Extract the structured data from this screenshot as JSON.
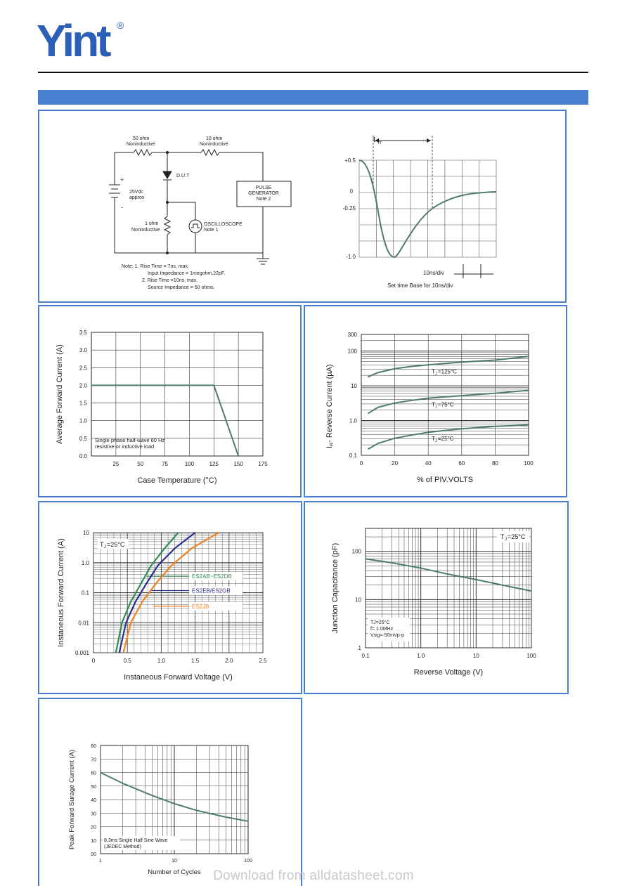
{
  "header": {
    "logo_text": "Yint",
    "registered_mark": "®",
    "brand_color": "#2b5fb8",
    "band_color": "#4a7fd0"
  },
  "trr_panel": {
    "circuit": {
      "r1_label": "50 ohm",
      "r1_sub": "Noninductive",
      "r2_label": "10 ohm",
      "r2_sub": "Noninductive",
      "dut_label": "D.U.T",
      "battery_label": "25Vdc",
      "battery_sub": "approx",
      "plus": "+",
      "minus": "-",
      "pulse_gen_1": "PULSE",
      "pulse_gen_2": "GENERATOR",
      "pulse_gen_3": "Note 2",
      "r3_label": "1 ohm",
      "r3_sub": "Noninductive",
      "scope_label": "OSCILLOSCOPE",
      "scope_sub": "Note 1",
      "note_1": "Note:  1. Rise Time = 7ns, max.",
      "note_2": "Input Impedance = 1megohm,22pF.",
      "note_3": "2. Rise Time =10ns, max.",
      "note_4": "Source Impedance = 50 ohms."
    },
    "waveform": {
      "trr_label": "t",
      "trr_sub": "rr",
      "y_labels": [
        "+0.5",
        "0",
        "-0.25",
        "-1.0"
      ],
      "div_label": "10ns/div",
      "base_label": "Set time Base for 10ns/div"
    }
  },
  "chart_data": [
    {
      "type": "line",
      "id": "derating",
      "xlabel": "Case Temperature (°C)",
      "ylabel": "Average Forward Current  (A)",
      "xlim": [
        0,
        175
      ],
      "ylim": [
        0,
        3.5
      ],
      "x_ticks": [
        "25",
        "50",
        "75",
        "100",
        "125",
        "150",
        "175"
      ],
      "y_ticks": [
        "0.0",
        "0.5",
        "1.0",
        "1.5",
        "2.0",
        "2.5",
        "3.0",
        "3.5"
      ],
      "annotation_1": "Single phase half-wave 60 Hz",
      "annotation_2": "resistive or inductive load",
      "series": [
        {
          "x": [
            0,
            125,
            150
          ],
          "y": [
            2.0,
            2.0,
            0.0
          ]
        }
      ],
      "grid": true
    },
    {
      "type": "line",
      "id": "reverse",
      "xlabel": "% of PIV.VOLTS",
      "ylabel": "IR- Reverse Current (µA)",
      "ylabel_main": "I",
      "ylabel_sub": "R",
      "ylabel_rest": "- Reverse Current (µA)",
      "yscale": "log",
      "xlim": [
        0,
        100
      ],
      "ylim": [
        0.1,
        300
      ],
      "x_ticks": [
        "0",
        "20",
        "40",
        "60",
        "80",
        "100"
      ],
      "y_ticks": [
        "0.1",
        "1.0",
        "10",
        "100",
        "300"
      ],
      "series": [
        {
          "name": "T   =125°C",
          "label_main": "T",
          "label_sub": "J",
          "label_rest": "=125°C",
          "x": [
            4,
            10,
            20,
            30,
            40,
            60,
            80,
            100
          ],
          "y": [
            18,
            24,
            31,
            36,
            40,
            48,
            55,
            70
          ]
        },
        {
          "name": "T   =75°C",
          "label_main": "T",
          "label_sub": "J",
          "label_rest": "=75°C",
          "x": [
            4,
            10,
            20,
            30,
            40,
            60,
            80,
            100
          ],
          "y": [
            1.6,
            2.4,
            3.2,
            3.8,
            4.4,
            5.2,
            6.1,
            7.4
          ]
        },
        {
          "name": "T   =25°C",
          "label_main": "T",
          "label_sub": "J",
          "label_rest": "=25°C",
          "x": [
            4,
            10,
            20,
            30,
            40,
            60,
            80,
            100
          ],
          "y": [
            0.15,
            0.22,
            0.31,
            0.38,
            0.46,
            0.58,
            0.68,
            0.75
          ]
        }
      ],
      "grid": true
    },
    {
      "type": "line",
      "id": "forward",
      "xlabel": "Instaneous Forward Voltage (V)",
      "ylabel": "Instaneous Forward Current (A)",
      "yscale": "log",
      "xlim": [
        0,
        2.5
      ],
      "ylim": [
        0.001,
        10
      ],
      "x_ticks": [
        "0",
        "0.5",
        "1.0",
        "1.5",
        "2.0",
        "2.5"
      ],
      "y_ticks": [
        "0.001",
        "0.01",
        "0.1",
        "1.0",
        "10"
      ],
      "tj_main": "T",
      "tj_sub": "J",
      "tj_rest": "=25°C",
      "series": [
        {
          "name": "ES2AB~ES2DB",
          "color": "#2e8b57",
          "x": [
            0.33,
            0.42,
            0.55,
            0.7,
            0.85,
            1.05,
            1.25
          ],
          "y": [
            0.001,
            0.01,
            0.05,
            0.2,
            0.8,
            3.0,
            10
          ]
        },
        {
          "name": "ES2EB/ES2GB",
          "color": "#2b2f8f",
          "x": [
            0.38,
            0.48,
            0.62,
            0.78,
            0.95,
            1.2,
            1.5
          ],
          "y": [
            0.001,
            0.01,
            0.05,
            0.2,
            0.8,
            3.0,
            10
          ]
        },
        {
          "name": "ES2JB",
          "color": "#f08020",
          "x": [
            0.44,
            0.55,
            0.72,
            0.92,
            1.15,
            1.45,
            1.85
          ],
          "y": [
            0.001,
            0.01,
            0.05,
            0.2,
            0.8,
            3.0,
            10
          ]
        }
      ],
      "grid": true
    },
    {
      "type": "line",
      "id": "capacitance",
      "xlabel": "Reverse  Voltage (V)",
      "ylabel": "Junction Capacitance (pF)",
      "xscale": "log",
      "yscale": "log",
      "xlim": [
        0.1,
        100
      ],
      "ylim": [
        1,
        300
      ],
      "x_ticks": [
        "0.1",
        "1.0",
        "10",
        "100"
      ],
      "y_ticks": [
        "1",
        "10",
        "100"
      ],
      "legend_main": "T",
      "legend_sub": "J",
      "legend_rest": "=25°C",
      "notes": [
        "TJ=25°C",
        "f= 1.0MHz",
        "Vsig= 50mVp-p"
      ],
      "series": [
        {
          "x": [
            0.1,
            0.3,
            1,
            3,
            10,
            30,
            100
          ],
          "y": [
            70,
            58,
            45,
            34,
            26,
            20,
            15
          ]
        }
      ],
      "grid": true
    },
    {
      "type": "line",
      "id": "surge",
      "xlabel": "Number of Cycles",
      "ylabel": "Peak Forward Surage Current (A)",
      "xscale": "log",
      "xlim": [
        1,
        100
      ],
      "ylim": [
        0,
        80
      ],
      "x_ticks": [
        "1",
        "10",
        "100"
      ],
      "y_ticks": [
        "00",
        "10",
        "20",
        "30",
        "40",
        "50",
        "60",
        "70",
        "80"
      ],
      "annotation_1": "8.3ms Single Half Sine Wave",
      "annotation_2": "(JEDEC Method)",
      "series": [
        {
          "x": [
            1,
            2,
            5,
            10,
            20,
            50,
            100
          ],
          "y": [
            60,
            52,
            43,
            37,
            32,
            27,
            24
          ]
        }
      ],
      "grid": true
    }
  ],
  "footer": {
    "watermark": "Download from alldatasheet.com"
  }
}
